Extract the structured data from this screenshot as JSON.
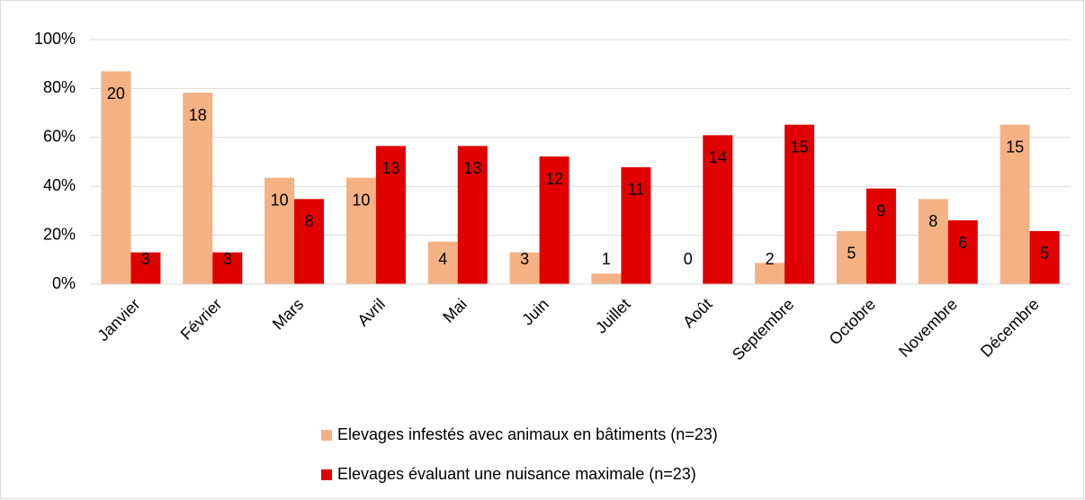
{
  "chart_data": {
    "type": "bar",
    "categories": [
      "Janvier",
      "Février",
      "Mars",
      "Avril",
      "Mai",
      "Juin",
      "Juillet",
      "Août",
      "Septembre",
      "Octobre",
      "Novembre",
      "Décembre"
    ],
    "series": [
      {
        "name": "Elevages infestés avec animaux en bâtiments (n=23)",
        "color": "#f4b183",
        "values": [
          87.0,
          78.3,
          43.5,
          43.5,
          17.4,
          13.0,
          4.3,
          0,
          8.7,
          21.7,
          34.8,
          65.2
        ],
        "value_labels": [
          "20",
          "18",
          "10",
          "10",
          "4",
          "3",
          "1",
          "0",
          "2",
          "5",
          "8",
          "15"
        ]
      },
      {
        "name": "Elevages évaluant une nuisance maximale (n=23)",
        "color": "#e00000",
        "values": [
          13.0,
          13.0,
          34.8,
          56.5,
          56.5,
          52.2,
          47.8,
          60.9,
          65.2,
          39.1,
          26.1,
          21.7
        ],
        "value_labels": [
          "3",
          "3",
          "8",
          "13",
          "13",
          "12",
          "11",
          "14",
          "15",
          "9",
          "6",
          "5"
        ]
      }
    ],
    "ylim": [
      0,
      100
    ],
    "yticks": [
      {
        "value": 0,
        "label": "0%"
      },
      {
        "value": 20,
        "label": "20%"
      },
      {
        "value": 40,
        "label": "40%"
      },
      {
        "value": 60,
        "label": "60%"
      },
      {
        "value": 80,
        "label": "80%"
      },
      {
        "value": 100,
        "label": "100%"
      }
    ],
    "grid": true,
    "legend": "bottom"
  }
}
